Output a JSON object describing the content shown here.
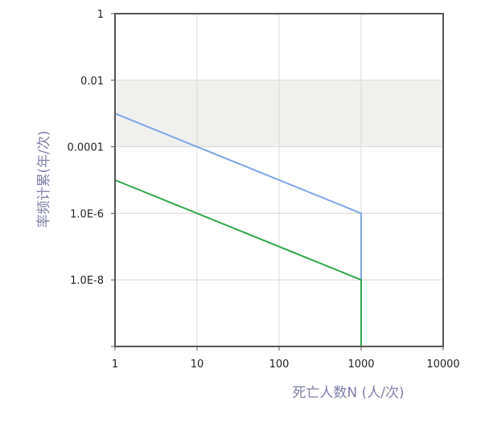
{
  "chart_data": {
    "type": "line",
    "title": "",
    "xlabel": "死亡人数N (人/次)",
    "ylabel": "率频计累(年/次)",
    "x_scale": "log",
    "y_scale": "log",
    "xlim": [
      1,
      10000
    ],
    "ylim": [
      1e-10,
      1
    ],
    "x_ticks": [
      {
        "value": 1,
        "label": "1"
      },
      {
        "value": 10,
        "label": "10"
      },
      {
        "value": 100,
        "label": "100"
      },
      {
        "value": 1000,
        "label": "1000"
      },
      {
        "value": 10000,
        "label": "10000"
      }
    ],
    "y_ticks": [
      {
        "value": 1,
        "label": "1"
      },
      {
        "value": 0.01,
        "label": "0.01"
      },
      {
        "value": 0.0001,
        "label": "0.0001"
      },
      {
        "value": 1e-06,
        "label": "1.0E-6"
      },
      {
        "value": 1e-08,
        "label": "1.0E-8"
      },
      {
        "value": 1e-10,
        "label": ""
      }
    ],
    "grid": true,
    "shaded_band": {
      "y_from": 0.0001,
      "y_to": 0.01,
      "color": "#f0f0ee"
    },
    "series": [
      {
        "color": "#7ea6e6",
        "points": [
          [
            1,
            0.001
          ],
          [
            1000,
            1e-06
          ],
          [
            1000,
            1e-10
          ]
        ]
      },
      {
        "color": "#2fa84a",
        "points": [
          [
            1,
            1e-05
          ],
          [
            1000,
            1e-08
          ],
          [
            1000,
            1e-10
          ]
        ]
      }
    ],
    "colors": {
      "frame": "#555555",
      "grid": "#d8d8d8"
    }
  }
}
